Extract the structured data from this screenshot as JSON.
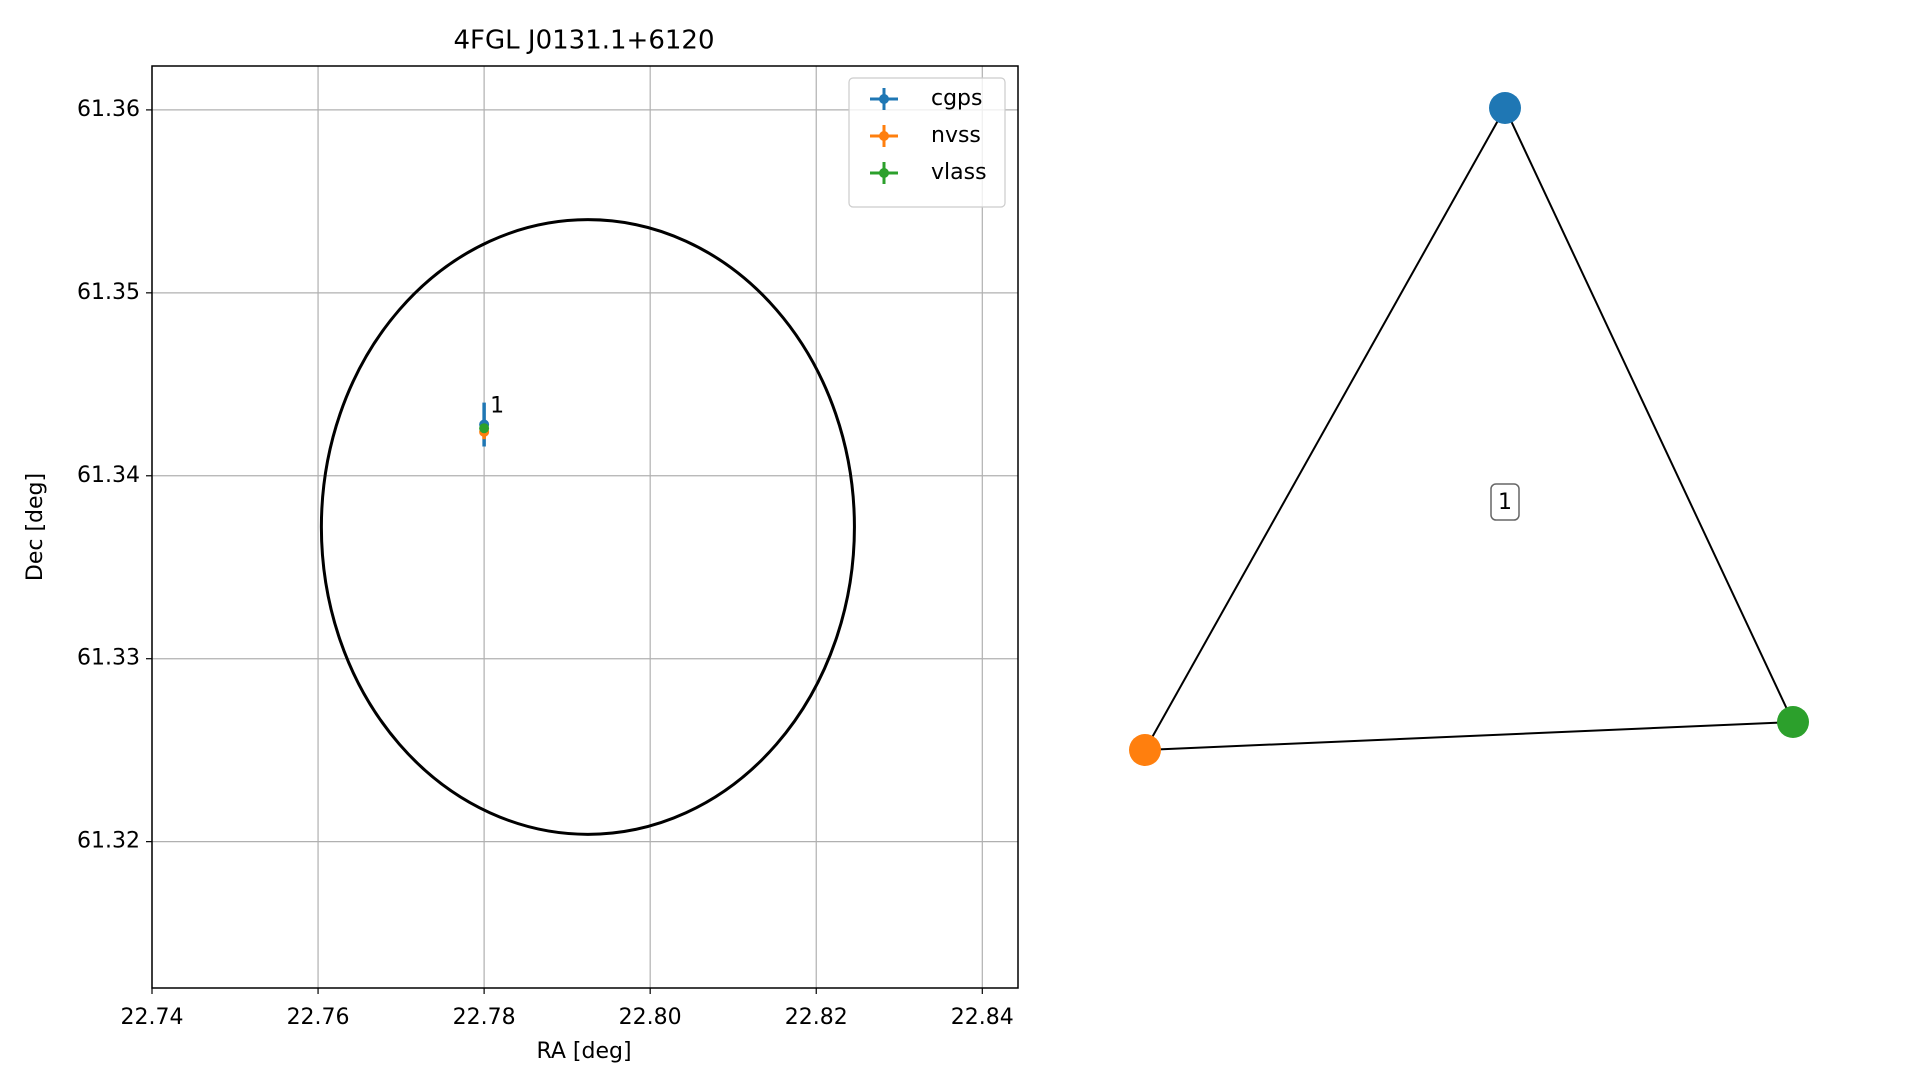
{
  "chart_data": {
    "type": "scatter",
    "title": "4FGL J0131.1+6120",
    "xlabel": "RA [deg]",
    "ylabel": "Dec [deg]",
    "xlim": [
      22.74,
      22.8443
    ],
    "ylim": [
      61.312,
      61.3624
    ],
    "xticks": [
      {
        "value": 22.74,
        "label": "22.74"
      },
      {
        "value": 22.76,
        "label": "22.76"
      },
      {
        "value": 22.78,
        "label": "22.78"
      },
      {
        "value": 22.8,
        "label": "22.80"
      },
      {
        "value": 22.82,
        "label": "22.82"
      },
      {
        "value": 22.84,
        "label": "22.84"
      }
    ],
    "yticks": [
      {
        "value": 61.32,
        "label": "61.32"
      },
      {
        "value": 61.33,
        "label": "61.33"
      },
      {
        "value": 61.34,
        "label": "61.34"
      },
      {
        "value": 61.35,
        "label": "61.35"
      },
      {
        "value": 61.36,
        "label": "61.36"
      }
    ],
    "grid": true,
    "legend": "upper right",
    "annotation": "1",
    "series": [
      {
        "name": "cgps",
        "color": "#1f77b4",
        "x": [
          22.78
        ],
        "values": [
          61.3428
        ],
        "yerr": [
          0.0012
        ]
      },
      {
        "name": "nvss",
        "color": "#ff7f0e",
        "x": [
          22.78
        ],
        "values": [
          61.3424
        ],
        "yerr": [
          0.0004
        ]
      },
      {
        "name": "vlass",
        "color": "#2ca02c",
        "x": [
          22.78
        ],
        "values": [
          61.3426
        ],
        "yerr": [
          0.0001
        ]
      }
    ],
    "ellipse": {
      "center": [
        22.7925,
        61.3372
      ],
      "semi_axes": [
        0.0321,
        0.0168
      ],
      "color": "#000000"
    }
  },
  "network": {
    "nodes": [
      {
        "color": "#1f77b4"
      },
      {
        "color": "#ff7f0e"
      },
      {
        "color": "#2ca02c"
      }
    ],
    "edge_label": "1"
  }
}
